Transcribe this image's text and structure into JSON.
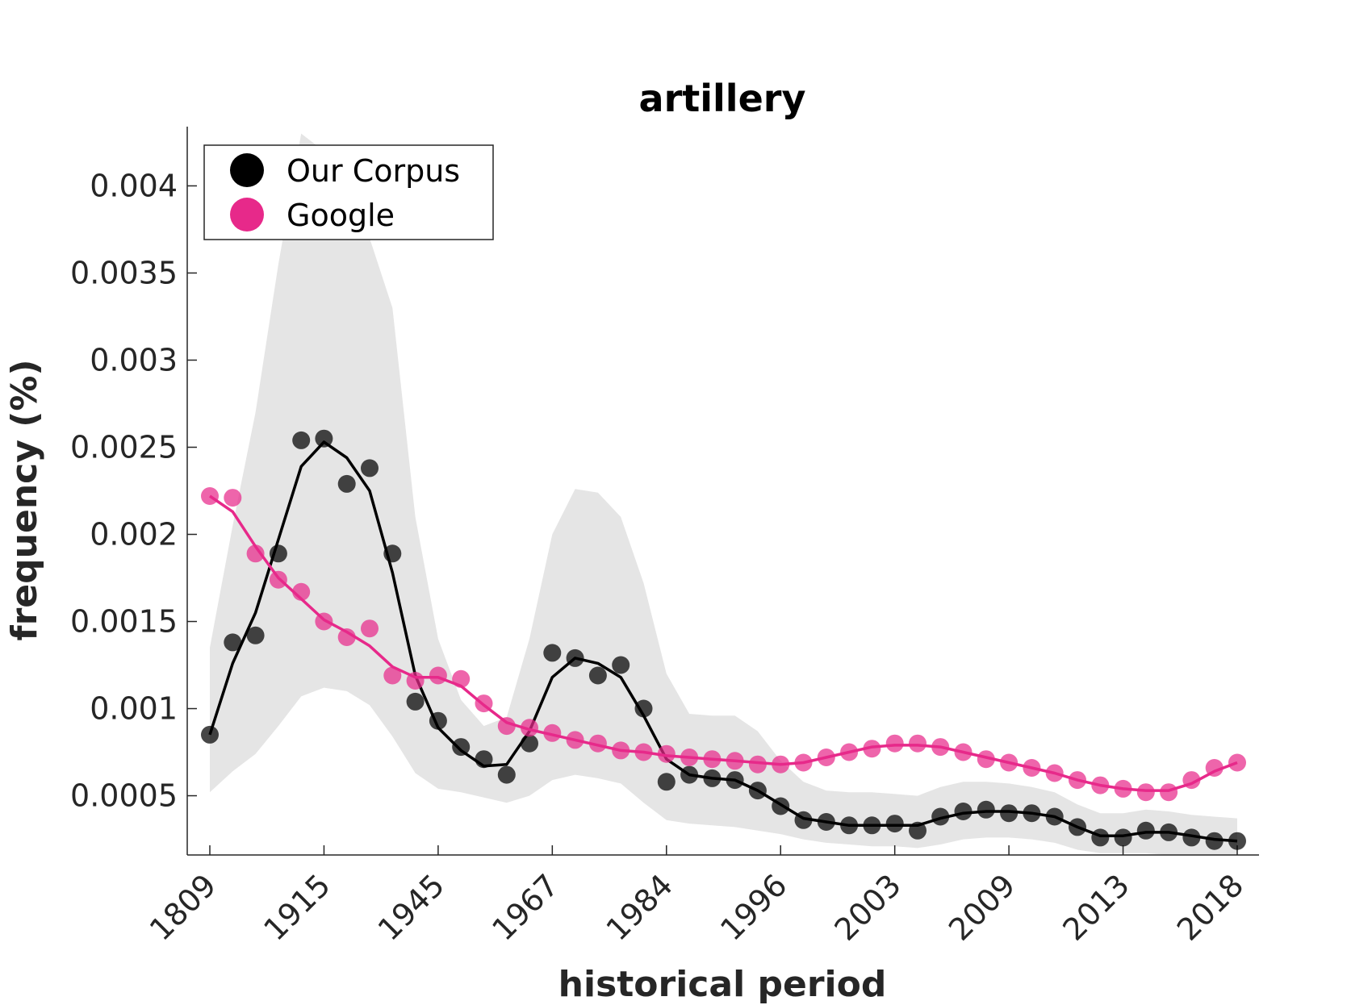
{
  "chart_data": {
    "type": "line",
    "title": "artillery",
    "xlabel": "historical period",
    "ylabel": "frequency (%)",
    "x_tick_labels": [
      "1809",
      "1915",
      "1945",
      "1967",
      "1984",
      "1996",
      "2003",
      "2009",
      "2013",
      "2018"
    ],
    "y_ticks": [
      0.0005,
      0.001,
      0.0015,
      0.002,
      0.0025,
      0.003,
      0.0035,
      0.004
    ],
    "y_tick_labels": [
      "0.0005",
      "0.001",
      "0.0015",
      "0.002",
      "0.0025",
      "0.003",
      "0.0035",
      "0.004"
    ],
    "ylim": [
      0.00016,
      0.00434
    ],
    "legend_position": "top-left",
    "grid": false,
    "series": [
      {
        "name": "Our Corpus",
        "color": "#000000",
        "values": [
          0.00085,
          0.00138,
          0.00142,
          0.00189,
          0.00254,
          0.00255,
          0.00229,
          0.00238,
          0.00189,
          0.00104,
          0.00093,
          0.00078,
          0.00071,
          0.00062,
          0.0008,
          0.00132,
          0.00129,
          0.00119,
          0.00125,
          0.001,
          0.00058,
          0.00062,
          0.0006,
          0.00059,
          0.00053,
          0.00044,
          0.00036,
          0.00035,
          0.00033,
          0.00033,
          0.00034,
          0.0003,
          0.00038,
          0.00041,
          0.00042,
          0.0004,
          0.0004,
          0.00038,
          0.00032,
          0.00026,
          0.00026,
          0.0003,
          0.00029,
          0.00026,
          0.00024,
          0.00024
        ],
        "smoothed": [
          0.00085,
          0.00126,
          0.00155,
          0.00197,
          0.00239,
          0.00253,
          0.00244,
          0.00225,
          0.00178,
          0.00119,
          0.00089,
          0.00076,
          0.00067,
          0.00068,
          0.00087,
          0.00118,
          0.00129,
          0.00126,
          0.00118,
          0.00096,
          0.00071,
          0.00062,
          0.0006,
          0.00059,
          0.00053,
          0.00045,
          0.00037,
          0.00035,
          0.00033,
          0.00033,
          0.00033,
          0.00033,
          0.00037,
          0.0004,
          0.00041,
          0.00041,
          0.0004,
          0.00038,
          0.00032,
          0.00027,
          0.00027,
          0.00029,
          0.00029,
          0.00027,
          0.00025,
          0.00024
        ],
        "band_upper": [
          0.00135,
          0.00205,
          0.0027,
          0.00355,
          0.0043,
          0.0042,
          0.0041,
          0.0037,
          0.0033,
          0.0021,
          0.0014,
          0.00105,
          0.0009,
          0.00095,
          0.0014,
          0.002,
          0.00226,
          0.00224,
          0.0021,
          0.00172,
          0.0012,
          0.00097,
          0.00096,
          0.00096,
          0.00087,
          0.0007,
          0.00058,
          0.00053,
          0.00052,
          0.00052,
          0.00051,
          0.0005,
          0.00055,
          0.00058,
          0.00058,
          0.00057,
          0.00055,
          0.00052,
          0.00045,
          0.0004,
          0.0004,
          0.00042,
          0.00041,
          0.00039,
          0.00038,
          0.00037
        ],
        "band_lower": [
          0.00052,
          0.00064,
          0.00074,
          0.0009,
          0.00107,
          0.00112,
          0.0011,
          0.00102,
          0.00084,
          0.00063,
          0.00054,
          0.00052,
          0.00049,
          0.00046,
          0.0005,
          0.00059,
          0.00062,
          0.0006,
          0.00057,
          0.00046,
          0.00036,
          0.00034,
          0.00033,
          0.00032,
          0.0003,
          0.00028,
          0.00025,
          0.00023,
          0.00022,
          0.00021,
          0.00021,
          0.0002,
          0.00022,
          0.00025,
          0.00026,
          0.00026,
          0.00025,
          0.00023,
          0.00019,
          0.00017,
          0.00017,
          0.00017,
          0.00016,
          0.00016,
          0.00016,
          0.00016
        ]
      },
      {
        "name": "Google",
        "color": "#e7298a",
        "values": [
          0.00222,
          0.00221,
          0.00189,
          0.00174,
          0.00167,
          0.0015,
          0.00141,
          0.00146,
          0.00119,
          0.00116,
          0.00119,
          0.00117,
          0.00103,
          0.0009,
          0.00089,
          0.00086,
          0.00082,
          0.0008,
          0.00076,
          0.00075,
          0.00074,
          0.00072,
          0.00071,
          0.0007,
          0.00068,
          0.00068,
          0.00069,
          0.00072,
          0.00075,
          0.00077,
          0.0008,
          0.0008,
          0.00078,
          0.00075,
          0.00071,
          0.00069,
          0.00066,
          0.00063,
          0.00059,
          0.00056,
          0.00054,
          0.00052,
          0.00052,
          0.00059,
          0.00066,
          0.00069
        ],
        "smoothed": [
          0.00222,
          0.00213,
          0.00193,
          0.00175,
          0.00163,
          0.00151,
          0.00144,
          0.00136,
          0.00124,
          0.00118,
          0.00118,
          0.00113,
          0.00102,
          0.00092,
          0.00088,
          0.00085,
          0.00082,
          0.00079,
          0.00076,
          0.00075,
          0.00073,
          0.00072,
          0.00071,
          0.0007,
          0.00069,
          0.00068,
          0.00069,
          0.00072,
          0.00075,
          0.00078,
          0.00079,
          0.00079,
          0.00078,
          0.00075,
          0.00072,
          0.00069,
          0.00066,
          0.00063,
          0.00059,
          0.00056,
          0.00054,
          0.00053,
          0.00053,
          0.00057,
          0.00064,
          0.00069
        ]
      }
    ]
  }
}
